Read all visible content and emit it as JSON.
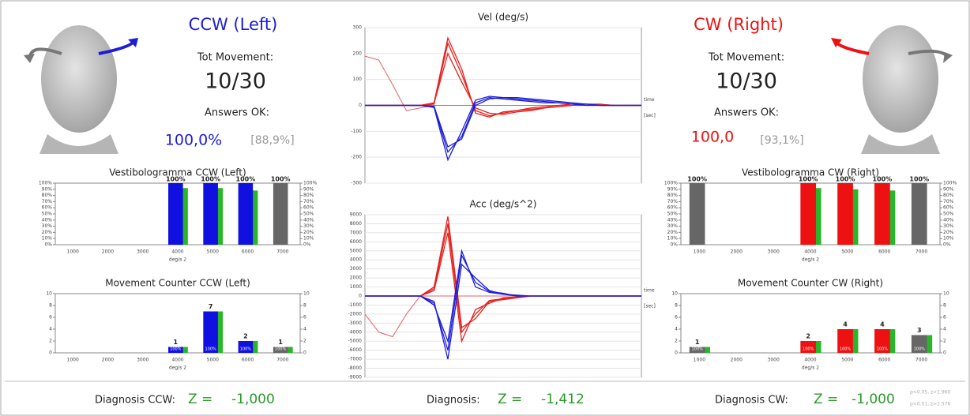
{
  "left": {
    "title": "CCW (Left)",
    "tot_movement_label": "Tot Movement:",
    "tot_movement": "10/30",
    "answers_label": "Answers OK:",
    "answers": "100,0%",
    "answers_ref": "[88,9%]",
    "diagnosis_label": "Diagnosis CCW:",
    "z_label": "Z =",
    "z": "-1,000"
  },
  "right": {
    "title": "CW (Right)",
    "tot_movement_label": "Tot Movement:",
    "tot_movement": "10/30",
    "answers_label": "Answers OK:",
    "answers": "100,0",
    "answers_ref": "[93,1%]",
    "diagnosis_label": "Diagnosis CW:",
    "z_label": "Z =",
    "z": "-1,000",
    "notes": [
      "p<0.05, z>1.960",
      "p<0.01, z>2.576"
    ]
  },
  "center": {
    "diagnosis_label": "Diagnosis:",
    "z_label": "Z =",
    "z": "-1,412"
  },
  "chart_data": [
    {
      "type": "line",
      "title": "Vel (deg/s)",
      "x_annotation": "time",
      "x_unit": "[sec]",
      "grid": true,
      "x": [
        0,
        1,
        2,
        3,
        4,
        5,
        6,
        7,
        8,
        9,
        10,
        11,
        12,
        13,
        14,
        15,
        16,
        17,
        18,
        19,
        20
      ],
      "xlim": [
        0,
        20
      ],
      "ylim": [
        -300,
        300
      ],
      "yticks": [
        300,
        200,
        100,
        0,
        -100,
        -200,
        -300
      ],
      "series": [
        {
          "color": "#e86060",
          "width": 1,
          "values": [
            190,
            175,
            80,
            -20,
            -10,
            0,
            0,
            0,
            0,
            0,
            0,
            0,
            0,
            0,
            0,
            0,
            0,
            0,
            0,
            0,
            0
          ]
        },
        {
          "color": "#e8201c",
          "values": [
            0,
            0,
            0,
            0,
            0,
            5,
            240,
            120,
            -20,
            -40,
            -30,
            -20,
            -15,
            -10,
            -5,
            0,
            5,
            5,
            0,
            0,
            0
          ]
        },
        {
          "color": "#e8201c",
          "values": [
            0,
            0,
            0,
            0,
            0,
            8,
            200,
            90,
            -10,
            -30,
            -35,
            -25,
            -20,
            -10,
            -5,
            0,
            0,
            0,
            0,
            0,
            0
          ]
        },
        {
          "color": "#e8201c",
          "values": [
            0,
            0,
            0,
            0,
            0,
            10,
            260,
            140,
            -30,
            -45,
            -25,
            -20,
            -10,
            -5,
            0,
            5,
            5,
            0,
            0,
            0,
            0
          ]
        },
        {
          "color": "#1d1dd8",
          "values": [
            0,
            0,
            0,
            0,
            0,
            -5,
            -180,
            -120,
            10,
            30,
            25,
            20,
            15,
            10,
            10,
            5,
            5,
            0,
            0,
            0,
            0
          ]
        },
        {
          "color": "#1d1dd8",
          "values": [
            0,
            0,
            0,
            0,
            0,
            -8,
            -210,
            -100,
            20,
            35,
            30,
            25,
            20,
            15,
            10,
            5,
            0,
            0,
            0,
            0,
            0
          ]
        },
        {
          "color": "#1d1dd8",
          "values": [
            0,
            0,
            0,
            0,
            0,
            -3,
            -160,
            -130,
            0,
            25,
            30,
            30,
            25,
            20,
            15,
            10,
            5,
            0,
            0,
            0,
            0
          ]
        }
      ]
    },
    {
      "type": "line",
      "title": "Acc (deg/s^2)",
      "x_annotation": "time",
      "x_unit": "[sec]",
      "grid": true,
      "x": [
        0,
        1,
        2,
        3,
        4,
        5,
        6,
        7,
        8,
        9,
        10,
        11,
        12,
        13,
        14,
        15,
        16,
        17,
        18,
        19,
        20
      ],
      "xlim": [
        0,
        20
      ],
      "ylim": [
        -9000,
        9000
      ],
      "yticks": [
        9000,
        8000,
        7000,
        6000,
        5000,
        4000,
        3000,
        2000,
        1000,
        0,
        -1000,
        -2000,
        -3000,
        -4000,
        -5000,
        -6000,
        -7000,
        -8000,
        -9000
      ],
      "series": [
        {
          "color": "#e86060",
          "width": 1,
          "values": [
            -2000,
            -4000,
            -4500,
            -2000,
            0,
            0,
            0,
            0,
            0,
            0,
            0,
            0,
            0,
            0,
            0,
            0,
            0,
            0,
            0,
            0,
            0
          ]
        },
        {
          "color": "#e8201c",
          "values": [
            0,
            0,
            0,
            0,
            0,
            800,
            8000,
            -4000,
            -2000,
            -500,
            -300,
            -200,
            0,
            0,
            0,
            0,
            0,
            0,
            0,
            0,
            0
          ]
        },
        {
          "color": "#e8201c",
          "values": [
            0,
            0,
            0,
            0,
            0,
            600,
            7000,
            -5000,
            -1500,
            -800,
            -200,
            -100,
            0,
            0,
            0,
            0,
            0,
            0,
            0,
            0,
            0
          ]
        },
        {
          "color": "#e8201c",
          "values": [
            0,
            0,
            0,
            0,
            0,
            1000,
            8800,
            -3500,
            -2500,
            -600,
            -400,
            -200,
            0,
            0,
            0,
            0,
            0,
            0,
            0,
            0,
            0
          ]
        },
        {
          "color": "#1d1dd8",
          "values": [
            0,
            0,
            0,
            0,
            0,
            -800,
            -6000,
            4500,
            1500,
            500,
            300,
            0,
            0,
            0,
            0,
            0,
            0,
            0,
            0,
            0,
            0
          ]
        },
        {
          "color": "#1d1dd8",
          "values": [
            0,
            0,
            0,
            0,
            0,
            -600,
            -7000,
            3500,
            2000,
            600,
            200,
            0,
            0,
            0,
            0,
            0,
            0,
            0,
            0,
            0,
            0
          ]
        },
        {
          "color": "#1d1dd8",
          "values": [
            0,
            0,
            0,
            0,
            0,
            -1000,
            -5000,
            5000,
            1000,
            400,
            200,
            100,
            0,
            0,
            0,
            0,
            0,
            0,
            0,
            0,
            0
          ]
        }
      ]
    },
    {
      "type": "bar",
      "title": "Vestibologramma CCW (Left)",
      "xlabel": "deg/s 2",
      "categories": [
        "1000",
        "2000",
        "3000",
        "4000",
        "5000",
        "6000",
        "7000"
      ],
      "ylim": [
        0,
        100
      ],
      "yticks": [
        {
          "value": 0,
          "label": "0%"
        },
        {
          "value": 10,
          "label": "10%"
        },
        {
          "value": 20,
          "label": "20%"
        },
        {
          "value": 30,
          "label": "30%"
        },
        {
          "value": 40,
          "label": "40%"
        },
        {
          "value": 50,
          "label": "50%"
        },
        {
          "value": 60,
          "label": "60%"
        },
        {
          "value": 70,
          "label": "70%"
        },
        {
          "value": 80,
          "label": "80%"
        },
        {
          "value": 90,
          "label": "90%"
        },
        {
          "value": 100,
          "label": "100%"
        }
      ],
      "series": [
        {
          "color": "#2bb52b",
          "values": [
            null,
            null,
            null,
            92,
            92,
            88,
            null
          ]
        },
        {
          "colors": [
            null,
            null,
            null,
            "#1010e0",
            "#1010e0",
            "#1010e0",
            "#666666"
          ],
          "values": [
            null,
            null,
            null,
            100,
            100,
            100,
            100
          ],
          "value_labels": [
            null,
            null,
            null,
            "100%",
            "100%",
            "100%",
            "100%"
          ]
        }
      ]
    },
    {
      "type": "bar",
      "title": "Movement Counter CCW (Left)",
      "xlabel": "deg/s 2",
      "categories": [
        "1000",
        "2000",
        "3000",
        "4000",
        "5000",
        "6000",
        "7000"
      ],
      "ylim": [
        0,
        10
      ],
      "yticks": [
        0,
        2,
        4,
        6,
        8,
        10
      ],
      "series": [
        {
          "color": "#2bb52b",
          "values": [
            null,
            null,
            null,
            1,
            7,
            2,
            1
          ]
        },
        {
          "colors": [
            null,
            null,
            null,
            "#1010e0",
            "#1010e0",
            "#1010e0",
            "#666666"
          ],
          "values": [
            null,
            null,
            null,
            1,
            7,
            2,
            1
          ],
          "inner_labels": [
            null,
            null,
            null,
            "100%",
            "100%",
            "100%",
            "100%"
          ]
        }
      ]
    },
    {
      "type": "bar",
      "title": "Vestibologramma CW (Right)",
      "xlabel": "deg/s 2",
      "categories": [
        "1000",
        "2000",
        "3000",
        "4000",
        "5000",
        "6000",
        "7000"
      ],
      "ylim": [
        0,
        100
      ],
      "yticks": [
        {
          "value": 0,
          "label": "0%"
        },
        {
          "value": 10,
          "label": "10%"
        },
        {
          "value": 20,
          "label": "20%"
        },
        {
          "value": 30,
          "label": "30%"
        },
        {
          "value": 40,
          "label": "40%"
        },
        {
          "value": 50,
          "label": "50%"
        },
        {
          "value": 60,
          "label": "60%"
        },
        {
          "value": 70,
          "label": "70%"
        },
        {
          "value": 80,
          "label": "80%"
        },
        {
          "value": 90,
          "label": "90%"
        },
        {
          "value": 100,
          "label": "100%"
        }
      ],
      "series": [
        {
          "color": "#2bb52b",
          "values": [
            null,
            null,
            null,
            92,
            90,
            88,
            null
          ]
        },
        {
          "colors": [
            "#666666",
            null,
            null,
            "#ee1111",
            "#ee1111",
            "#ee1111",
            "#666666"
          ],
          "values": [
            100,
            null,
            null,
            100,
            100,
            100,
            100
          ],
          "value_labels": [
            "100%",
            null,
            null,
            "100%",
            "100%",
            "100%",
            "100%"
          ]
        }
      ]
    },
    {
      "type": "bar",
      "title": "Movement Counter CW (Right)",
      "xlabel": "deg/s 2",
      "categories": [
        "1000",
        "2000",
        "3000",
        "4000",
        "5000",
        "6000",
        "7000"
      ],
      "ylim": [
        0,
        10
      ],
      "yticks": [
        0,
        2,
        4,
        6,
        8,
        10
      ],
      "series": [
        {
          "color": "#2bb52b",
          "values": [
            1,
            null,
            null,
            2,
            4,
            4,
            3
          ]
        },
        {
          "colors": [
            "#666666",
            null,
            null,
            "#ee1111",
            "#ee1111",
            "#ee1111",
            "#666666"
          ],
          "values": [
            1,
            null,
            null,
            2,
            4,
            4,
            3
          ],
          "inner_labels": [
            "100%",
            null,
            null,
            "100%",
            "100%",
            "100%",
            "100%"
          ]
        }
      ]
    }
  ]
}
